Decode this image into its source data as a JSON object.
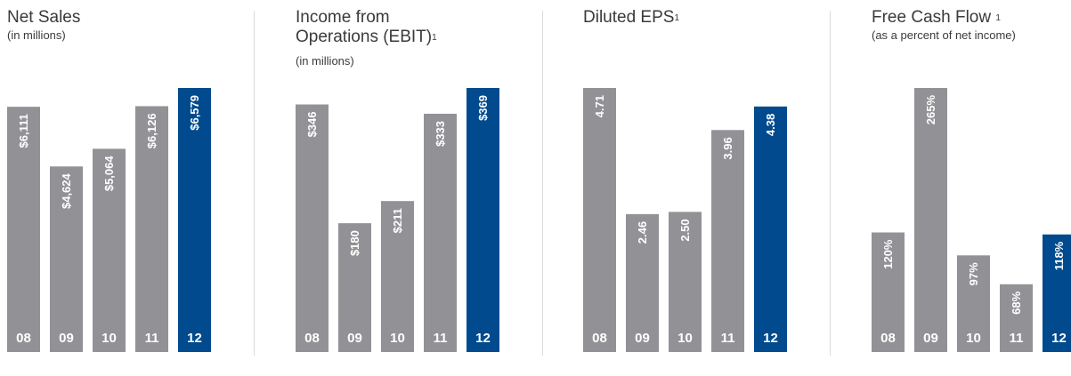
{
  "colors": {
    "bar_default": "#929296",
    "bar_highlight": "#004a8d",
    "divider": "#d9d9d9",
    "text": "#3a3a3a"
  },
  "chart_data": [
    {
      "type": "bar",
      "title_lines": [
        "Net Sales"
      ],
      "title_sup": "",
      "subtitle": "(in millions)",
      "categories": [
        "08",
        "09",
        "10",
        "11",
        "12"
      ],
      "values": [
        6111,
        4624,
        5064,
        6126,
        6579
      ],
      "labels": [
        "$6,111",
        "$4,624",
        "$5,064",
        "$6,126",
        "$6,579"
      ],
      "highlight_index": 4,
      "ylim": [
        0,
        6579
      ]
    },
    {
      "type": "bar",
      "title_lines": [
        "Income from",
        "Operations (EBIT)"
      ],
      "title_sup": "1",
      "subtitle": "(in millions)",
      "categories": [
        "08",
        "09",
        "10",
        "11",
        "12"
      ],
      "values": [
        346,
        180,
        211,
        333,
        369
      ],
      "labels": [
        "$346",
        "$180",
        "$211",
        "$333",
        "$369"
      ],
      "highlight_index": 4,
      "ylim": [
        0,
        369
      ]
    },
    {
      "type": "bar",
      "title_lines": [
        "Diluted EPS"
      ],
      "title_sup": "1",
      "subtitle": "",
      "categories": [
        "08",
        "09",
        "10",
        "11",
        "12"
      ],
      "values": [
        4.71,
        2.46,
        2.5,
        3.96,
        4.38
      ],
      "labels": [
        "4.71",
        "2.46",
        "2.50",
        "3.96",
        "4.38"
      ],
      "highlight_index": 4,
      "ylim": [
        0,
        4.71
      ]
    },
    {
      "type": "bar",
      "title_lines": [
        "Free Cash Flow"
      ],
      "title_sup": "1",
      "subtitle": "(as a percent of net income)",
      "categories": [
        "08",
        "09",
        "10",
        "11",
        "12"
      ],
      "values": [
        120,
        265,
        97,
        68,
        118
      ],
      "labels": [
        "120%",
        "265%",
        "97%",
        "68%",
        "118%"
      ],
      "highlight_index": 4,
      "ylim": [
        0,
        265
      ]
    }
  ]
}
